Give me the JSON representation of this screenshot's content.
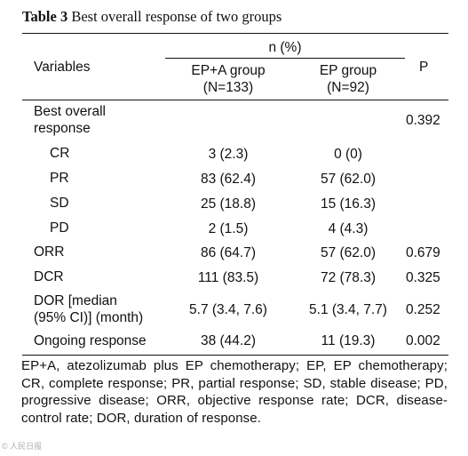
{
  "caption": {
    "label": "Table 3",
    "title": "Best overall response of two groups"
  },
  "header": {
    "variables": "Variables",
    "n_pct": "n (%)",
    "p": "P",
    "group1_name": "EP+A group",
    "group1_n": "(N=133)",
    "group2_name": "EP group",
    "group2_n": "(N=92)"
  },
  "rows": [
    {
      "label1": "Best overall",
      "label2": "response",
      "g1": "",
      "g2": "",
      "p": "0.392"
    },
    {
      "label": "CR",
      "g1": "3 (2.3)",
      "g2": "0 (0)",
      "p": ""
    },
    {
      "label": "PR",
      "g1": "83 (62.4)",
      "g2": "57 (62.0)",
      "p": ""
    },
    {
      "label": "SD",
      "g1": "25 (18.8)",
      "g2": "15 (16.3)",
      "p": ""
    },
    {
      "label": "PD",
      "g1": "2 (1.5)",
      "g2": "4 (4.3)",
      "p": ""
    },
    {
      "label": "ORR",
      "g1": "86 (64.7)",
      "g2": "57 (62.0)",
      "p": "0.679"
    },
    {
      "label": "DCR",
      "g1": "111 (83.5)",
      "g2": "72 (78.3)",
      "p": "0.325"
    },
    {
      "label1": "DOR [median",
      "label2": "(95% CI)] (month)",
      "g1": "5.7 (3.4, 7.6)",
      "g2": "5.1 (3.4, 7.7)",
      "p": "0.252"
    },
    {
      "label": "Ongoing response",
      "g1": "38 (44.2)",
      "g2": "11 (19.3)",
      "p": "0.002"
    }
  ],
  "footnote": "EP+A, atezolizumab plus EP chemotherapy; EP, EP chemotherapy; CR, complete response; PR, partial response; SD, stable disease; PD, progressive disease; ORR, objective response rate; DCR, disease-control rate; DOR, duration of response.",
  "watermark": "© 人民日报"
}
